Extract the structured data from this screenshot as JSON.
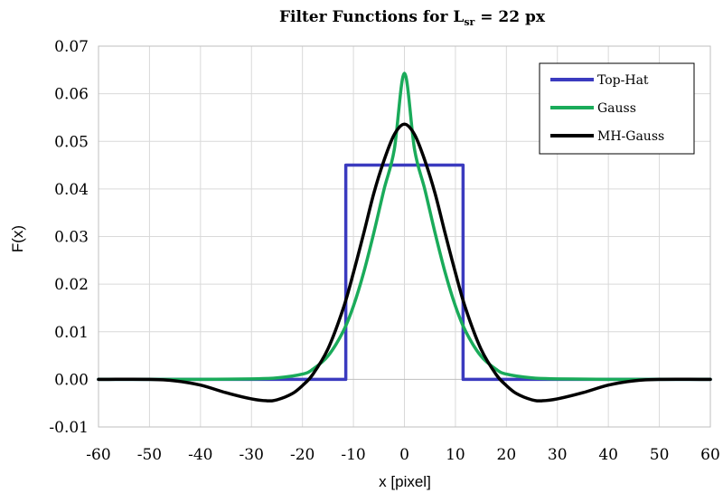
{
  "chart_data": {
    "type": "line",
    "title_main": "Filter Functions for L",
    "title_sub": "sr",
    "title_tail": " = 22 px",
    "xlabel": "x [pixel]",
    "ylabel": "F(x)",
    "xlim": [
      -60,
      60
    ],
    "ylim": [
      -0.01,
      0.07
    ],
    "x_ticks": [
      -60,
      -50,
      -40,
      -30,
      -20,
      -10,
      0,
      10,
      20,
      30,
      40,
      50,
      60
    ],
    "y_ticks": [
      -0.01,
      0.0,
      0.01,
      0.02,
      0.03,
      0.04,
      0.05,
      0.06,
      0.07
    ],
    "y_tick_labels": [
      "-0.01",
      "0.00",
      "0.01",
      "0.02",
      "0.03",
      "0.04",
      "0.05",
      "0.06",
      "0.07"
    ],
    "grid": true,
    "legend_position": "top-right",
    "series": [
      {
        "name": "Top-Hat",
        "color": "#3b3bbf",
        "x": [
          -60,
          -11.5,
          -11.5,
          11.5,
          11.5,
          60
        ],
        "y": [
          0,
          0,
          0.045,
          0.045,
          0,
          0
        ]
      },
      {
        "name": "Gauss",
        "color": "#1aab5a",
        "x": [
          -60,
          -40,
          -30,
          -25,
          -20,
          -18,
          -15,
          -12,
          -10,
          -8,
          -6,
          -4,
          -2,
          0,
          2,
          4,
          6,
          8,
          10,
          12,
          15,
          18,
          20,
          25,
          30,
          40,
          60
        ],
        "y": [
          0,
          0,
          0.0001,
          0.0003,
          0.0011,
          0.0021,
          0.0049,
          0.0101,
          0.0154,
          0.0224,
          0.0308,
          0.0399,
          0.0482,
          0.0643,
          0.0482,
          0.0399,
          0.0308,
          0.0224,
          0.0154,
          0.0101,
          0.0049,
          0.0021,
          0.0011,
          0.0003,
          0.0001,
          0,
          0
        ]
      },
      {
        "name": "MH-Gauss",
        "color": "#000000",
        "x": [
          -60,
          -50,
          -45,
          -40,
          -35,
          -30,
          -27,
          -25,
          -22,
          -20,
          -18,
          -15,
          -12,
          -10,
          -8,
          -6,
          -4,
          -2,
          0,
          2,
          4,
          6,
          8,
          10,
          12,
          15,
          18,
          20,
          22,
          25,
          27,
          30,
          35,
          40,
          45,
          50,
          60
        ],
        "y": [
          0,
          0,
          -0.0003,
          -0.0012,
          -0.0028,
          -0.0041,
          -0.0045,
          -0.0043,
          -0.003,
          -0.0013,
          0.001,
          0.0064,
          0.0149,
          0.0224,
          0.0306,
          0.0391,
          0.046,
          0.0514,
          0.0536,
          0.0514,
          0.046,
          0.0391,
          0.0306,
          0.0224,
          0.0149,
          0.0064,
          0.001,
          -0.0013,
          -0.003,
          -0.0043,
          -0.0045,
          -0.0041,
          -0.0028,
          -0.0012,
          -0.0003,
          0,
          0
        ]
      }
    ]
  }
}
